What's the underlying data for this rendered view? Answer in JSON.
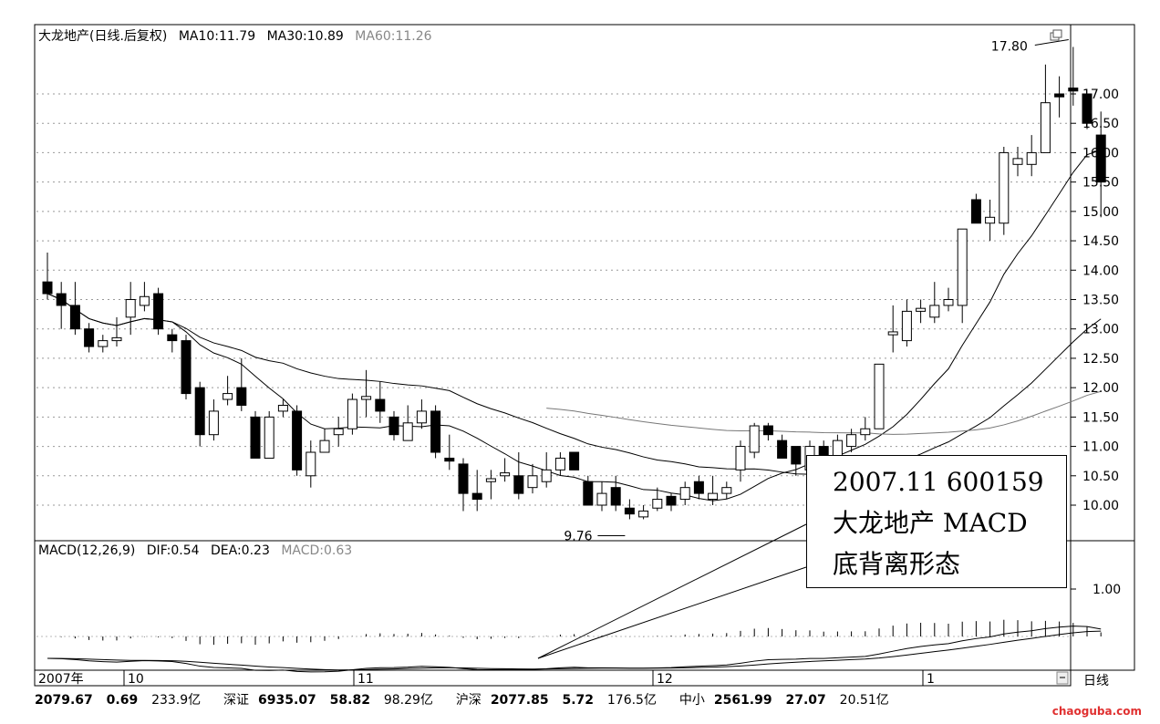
{
  "header": {
    "stock": "大龙地产(日线.后复权)",
    "ma10": "MA10:11.79",
    "ma30": "MA30:10.89",
    "ma60": "MA60:11.26"
  },
  "macd_header": {
    "name": "MACD(12,26,9)",
    "dif": "DIF:0.54",
    "dea": "DEA:0.23",
    "macd": "MACD:0.63"
  },
  "callout": {
    "line1": "2007.11  600159",
    "line2": "大龙地产 MACD",
    "line3": "底背离形态"
  },
  "period_label": "日线",
  "status_bar": {
    "items": [
      {
        "label": "",
        "value": "2079.67",
        "change": "0.69",
        "amount": "233.9亿"
      },
      {
        "label": "深证",
        "value": "6935.07",
        "change": "58.82",
        "amount": "98.29亿"
      },
      {
        "label": "沪深",
        "value": "2077.85",
        "change": "5.72",
        "amount": "176.5亿"
      },
      {
        "label": "中小",
        "value": "2561.99",
        "change": "27.07",
        "amount": "20.51亿"
      }
    ]
  },
  "watermark": "chaoguba.com",
  "chart_data": {
    "type": "candlestick",
    "title": "大龙地产(日线.后复权)",
    "y_ticks": [
      "17.00",
      "16.50",
      "16.00",
      "15.50",
      "15.00",
      "14.50",
      "14.00",
      "13.50",
      "13.00",
      "12.50",
      "12.00",
      "11.50",
      "11.00",
      "10.50",
      "10.00"
    ],
    "ylim": [
      9.4,
      18.0
    ],
    "x_labels": [
      "2007年",
      "10",
      "11",
      "12",
      "1"
    ],
    "annotations": [
      {
        "text": "17.80",
        "target": "high",
        "value": 17.8
      },
      {
        "text": "9.76",
        "target": "low",
        "value": 9.76
      }
    ],
    "candles": [
      [
        13.8,
        13.6,
        14.3,
        13.5
      ],
      [
        13.6,
        13.4,
        13.8,
        13.0
      ],
      [
        13.4,
        13.0,
        13.8,
        12.9
      ],
      [
        13.0,
        12.7,
        13.1,
        12.6
      ],
      [
        12.7,
        12.8,
        12.9,
        12.6
      ],
      [
        12.8,
        12.85,
        13.2,
        12.7
      ],
      [
        13.2,
        13.5,
        13.8,
        12.9
      ],
      [
        13.4,
        13.55,
        13.8,
        13.3
      ],
      [
        13.6,
        13.0,
        13.7,
        12.9
      ],
      [
        12.9,
        12.8,
        13.0,
        12.6
      ],
      [
        12.8,
        11.9,
        12.9,
        11.8
      ],
      [
        12.0,
        11.2,
        12.1,
        11.0
      ],
      [
        11.2,
        11.6,
        11.8,
        11.1
      ],
      [
        11.8,
        11.9,
        12.2,
        11.7
      ],
      [
        12.0,
        11.7,
        12.5,
        11.6
      ],
      [
        11.5,
        10.8,
        11.6,
        10.8
      ],
      [
        10.8,
        11.5,
        11.6,
        10.8
      ],
      [
        11.6,
        11.7,
        11.8,
        11.5
      ],
      [
        11.6,
        10.6,
        11.7,
        10.5
      ],
      [
        10.5,
        10.9,
        11.1,
        10.3
      ],
      [
        10.9,
        11.1,
        11.3,
        10.9
      ],
      [
        11.2,
        11.3,
        11.5,
        11.0
      ],
      [
        11.3,
        11.8,
        11.9,
        11.2
      ],
      [
        11.8,
        11.85,
        12.3,
        11.5
      ],
      [
        11.8,
        11.6,
        12.1,
        11.4
      ],
      [
        11.5,
        11.2,
        11.6,
        11.1
      ],
      [
        11.1,
        11.4,
        11.7,
        11.1
      ],
      [
        11.4,
        11.6,
        11.8,
        11.3
      ],
      [
        11.6,
        10.9,
        11.7,
        10.8
      ],
      [
        10.8,
        10.75,
        11.2,
        10.6
      ],
      [
        10.7,
        10.2,
        10.8,
        9.9
      ],
      [
        10.2,
        10.1,
        10.6,
        9.9
      ],
      [
        10.4,
        10.45,
        10.6,
        10.1
      ],
      [
        10.5,
        10.55,
        10.8,
        10.4
      ],
      [
        10.5,
        10.2,
        10.9,
        10.1
      ],
      [
        10.3,
        10.5,
        10.7,
        10.2
      ],
      [
        10.4,
        10.6,
        10.9,
        10.3
      ],
      [
        10.6,
        10.8,
        10.9,
        10.5
      ],
      [
        10.9,
        10.6,
        10.9,
        10.6
      ],
      [
        10.4,
        10.0,
        10.5,
        10.0
      ],
      [
        10.0,
        10.2,
        10.4,
        9.9
      ],
      [
        10.3,
        10.0,
        10.5,
        9.9
      ],
      [
        9.95,
        9.85,
        10.1,
        9.76
      ],
      [
        9.8,
        9.9,
        10.0,
        9.76
      ],
      [
        9.95,
        10.1,
        10.3,
        9.9
      ],
      [
        10.15,
        10.0,
        10.2,
        9.9
      ],
      [
        10.1,
        10.3,
        10.4,
        10.0
      ],
      [
        10.4,
        10.2,
        10.5,
        10.1
      ],
      [
        10.1,
        10.2,
        10.5,
        10.0
      ],
      [
        10.2,
        10.3,
        10.4,
        10.1
      ],
      [
        10.6,
        11.0,
        11.1,
        10.4
      ],
      [
        10.9,
        11.35,
        11.4,
        10.8
      ],
      [
        11.35,
        11.2,
        11.4,
        11.1
      ],
      [
        11.1,
        10.8,
        11.2,
        10.8
      ],
      [
        11.0,
        10.7,
        11.0,
        10.5
      ],
      [
        10.6,
        11.0,
        11.1,
        10.4
      ],
      [
        11.0,
        10.7,
        11.1,
        10.5
      ],
      [
        10.8,
        11.1,
        11.2,
        10.7
      ],
      [
        11.0,
        11.2,
        11.3,
        10.9
      ],
      [
        11.2,
        11.3,
        11.5,
        11.1
      ],
      [
        11.3,
        12.4,
        12.4,
        11.3
      ],
      [
        12.9,
        12.95,
        13.4,
        12.6
      ],
      [
        12.8,
        13.3,
        13.5,
        12.7
      ],
      [
        13.3,
        13.35,
        13.5,
        13.1
      ],
      [
        13.2,
        13.4,
        13.8,
        13.1
      ],
      [
        13.4,
        13.5,
        13.7,
        13.3
      ],
      [
        13.4,
        14.7,
        14.7,
        13.1
      ],
      [
        15.2,
        14.8,
        15.3,
        14.8
      ],
      [
        14.8,
        14.9,
        15.2,
        14.5
      ],
      [
        14.8,
        16.0,
        16.1,
        14.6
      ],
      [
        15.8,
        15.9,
        16.1,
        15.6
      ],
      [
        15.8,
        16.0,
        16.3,
        15.6
      ],
      [
        16.0,
        16.85,
        17.5,
        16.0
      ],
      [
        17.0,
        16.95,
        17.3,
        16.6
      ],
      [
        17.1,
        17.05,
        17.8,
        16.8
      ],
      [
        17.0,
        16.5,
        17.0,
        16.4
      ],
      [
        16.3,
        15.5,
        16.7,
        14.9
      ]
    ],
    "macd": {
      "dif": 0.54,
      "dea": 0.23,
      "macd": 0.63,
      "y_tick": "1.00"
    }
  }
}
